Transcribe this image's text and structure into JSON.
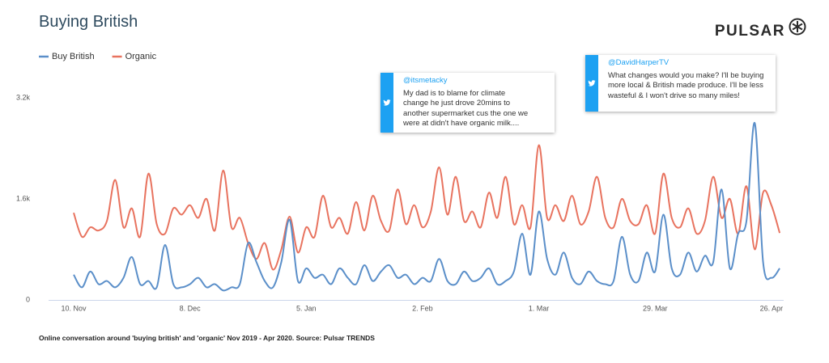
{
  "chart_data": {
    "type": "line",
    "title": "Buying British",
    "brand": "PULSAR",
    "caption": "Online conversation around 'buying british' and 'organic'  Nov 2019 - Apr 2020. Source: Pulsar TRENDS",
    "categories": [
      "10. Nov",
      null,
      null,
      null,
      null,
      null,
      null,
      null,
      null,
      null,
      null,
      null,
      null,
      null,
      "8. Dec",
      null,
      null,
      null,
      null,
      null,
      null,
      null,
      null,
      null,
      null,
      null,
      null,
      null,
      "5. Jan",
      null,
      null,
      null,
      null,
      null,
      null,
      null,
      null,
      null,
      null,
      null,
      null,
      null,
      "2. Feb",
      null,
      null,
      null,
      null,
      null,
      null,
      null,
      null,
      null,
      null,
      null,
      null,
      null,
      "1. Mar",
      null,
      null,
      null,
      null,
      null,
      null,
      null,
      null,
      null,
      null,
      null,
      null,
      null,
      "29. Mar",
      null,
      null,
      null,
      null,
      null,
      null,
      null,
      null,
      null,
      null,
      null,
      null,
      null,
      "26. Apr",
      null
    ],
    "series": [
      {
        "name": "Buy British",
        "color": "#5b8fc9",
        "values": [
          400,
          200,
          450,
          250,
          300,
          200,
          350,
          680,
          250,
          300,
          200,
          870,
          250,
          200,
          250,
          350,
          200,
          250,
          150,
          200,
          250,
          900,
          600,
          300,
          200,
          600,
          1270,
          300,
          500,
          350,
          400,
          250,
          500,
          350,
          250,
          550,
          300,
          450,
          550,
          350,
          400,
          250,
          350,
          300,
          650,
          300,
          250,
          450,
          300,
          350,
          500,
          250,
          300,
          450,
          1050,
          400,
          1400,
          650,
          400,
          750,
          350,
          250,
          450,
          300,
          250,
          300,
          1000,
          400,
          300,
          750,
          450,
          1350,
          500,
          400,
          750,
          450,
          700,
          600,
          1750,
          500,
          1050,
          1250,
          2800,
          600,
          350,
          500
        ]
      },
      {
        "name": "Organic",
        "color": "#e8735f",
        "values": [
          1380,
          1000,
          1150,
          1100,
          1250,
          1900,
          1150,
          1450,
          1000,
          2000,
          1200,
          1050,
          1450,
          1350,
          1500,
          1300,
          1600,
          1100,
          2050,
          1150,
          1300,
          900,
          650,
          900,
          480,
          800,
          1320,
          750,
          1150,
          1000,
          1650,
          1150,
          1300,
          1050,
          1550,
          1100,
          1650,
          1250,
          1100,
          1750,
          1200,
          1500,
          1150,
          1400,
          2100,
          1350,
          1950,
          1250,
          1400,
          1150,
          1700,
          1300,
          1950,
          1200,
          1500,
          1150,
          2450,
          1300,
          1500,
          1250,
          1650,
          1200,
          1400,
          1950,
          1300,
          1150,
          1600,
          1250,
          1200,
          1500,
          1050,
          2000,
          1300,
          1150,
          1450,
          1050,
          1250,
          1950,
          1300,
          1600,
          1050,
          1800,
          800,
          1700,
          1500,
          1060
        ]
      }
    ],
    "ylim": [
      0,
      3200
    ],
    "yticks": [
      0,
      {
        "value": 1600,
        "label": "1.6k"
      },
      {
        "value": 3200,
        "label": "3.2k"
      }
    ],
    "grid": false,
    "legend": "top-left",
    "annotations": [
      {
        "handle": "@itsmetacky",
        "lines": [
          "My dad is to blame for climate",
          "change he just drove 20mins to",
          "another supermarket cus the one we",
          "were at didn't have organic milk...."
        ]
      },
      {
        "handle": "@DavidHarperTV",
        "lines": [
          "What changes would you make? I'll be buying",
          "more local & British made produce. I'll be less",
          "wasteful & I won't drive so many miles!"
        ]
      }
    ]
  }
}
